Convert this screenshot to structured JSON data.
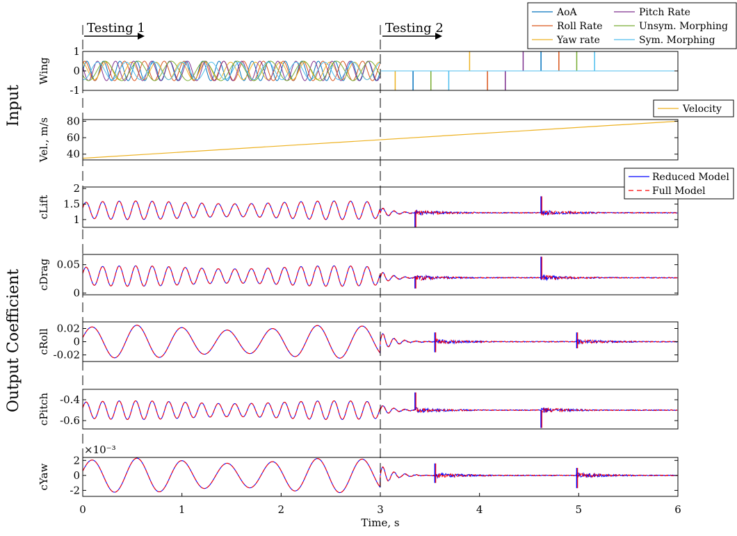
{
  "chart_data": {
    "type": "line",
    "x_axis": {
      "label": "Time, s",
      "range": [
        0,
        6
      ],
      "ticks": [
        "0",
        "1",
        "2",
        "3",
        "4",
        "5",
        "6"
      ]
    },
    "group_labels": [
      "Input",
      "Output Coefficient"
    ],
    "annotations": [
      "Testing 1",
      "Testing 2"
    ],
    "testing_boundary_time": 3,
    "panels": [
      {
        "ylabel": "Wing",
        "ylim": [
          -1,
          1
        ],
        "yticks": [
          "-1",
          "0",
          "1"
        ],
        "legend": [
          "AoA",
          "Roll Rate",
          "Yaw rate",
          "Pitch Rate",
          "Unsym. Morphing",
          "Sym. Morphing"
        ],
        "legend_columns": 2,
        "legend_placement": "top-right",
        "series": [
          {
            "name": "AoA",
            "color": "#0072BD",
            "testing1": {
              "amplitude": 0.5,
              "frequency_hz": 6.0
            },
            "pulses": [
              {
                "t": 3.33,
                "value": -1
              },
              {
                "t": 4.62,
                "value": 1
              }
            ]
          },
          {
            "name": "Roll Rate",
            "color": "#D95319",
            "testing1": {
              "amplitude": 0.5,
              "frequency_hz": 5.0
            },
            "pulses": [
              {
                "t": 4.08,
                "value": -1
              },
              {
                "t": 4.8,
                "value": 1
              }
            ]
          },
          {
            "name": "Yaw rate",
            "color": "#EDB120",
            "testing1": {
              "amplitude": 0.45,
              "frequency_hz": 4.0
            },
            "pulses": [
              {
                "t": 3.15,
                "value": -1
              },
              {
                "t": 3.9,
                "value": 1
              }
            ]
          },
          {
            "name": "Pitch Rate",
            "color": "#7E2F8E",
            "testing1": {
              "amplitude": 0.5,
              "frequency_hz": 5.5
            },
            "pulses": [
              {
                "t": 4.26,
                "value": -1
              },
              {
                "t": 4.44,
                "value": 1
              }
            ]
          },
          {
            "name": "Unsym. Morphing",
            "color": "#77AC30",
            "testing1": {
              "amplitude": 0.5,
              "frequency_hz": 3.0
            },
            "pulses": [
              {
                "t": 3.51,
                "value": -1
              },
              {
                "t": 4.98,
                "value": 1
              }
            ]
          },
          {
            "name": "Sym. Morphing",
            "color": "#4DBEEE",
            "testing1": {
              "amplitude": 0.45,
              "frequency_hz": 3.5
            },
            "pulses": [
              {
                "t": 3.69,
                "value": -1
              },
              {
                "t": 5.16,
                "value": 1
              }
            ]
          }
        ]
      },
      {
        "ylabel": "Vel., m/s",
        "ylim": [
          33,
          82
        ],
        "yticks": [
          "40",
          "60",
          "80"
        ],
        "legend": [
          "Velocity"
        ],
        "legend_placement": "top-right",
        "series": [
          {
            "name": "Velocity",
            "color": "#EDB120",
            "x": [
              0,
              6
            ],
            "values": [
              35,
              80
            ]
          }
        ]
      },
      {
        "ylabel": "cLift",
        "ylim": [
          0.75,
          2.05
        ],
        "yticks": [
          "1",
          "1.5",
          "2"
        ],
        "legend": [
          "Reduced Model",
          "Full Model"
        ],
        "legend_placement": "top-right",
        "testing1": {
          "mean": 1.3,
          "amplitude": 0.3,
          "frequency_hz": 6.0
        },
        "testing2_baseline": 1.22,
        "spikes": [
          {
            "t": 3.35,
            "min": 0.75,
            "max": 1.25
          },
          {
            "t": 4.62,
            "min": 1.2,
            "max": 1.75
          }
        ]
      },
      {
        "ylabel": "cDrag",
        "ylim": [
          -0.003,
          0.068
        ],
        "yticks": [
          "0",
          "0.05"
        ],
        "testing1": {
          "mean": 0.03,
          "amplitude": 0.018,
          "frequency_hz": 6.0
        },
        "testing2_baseline": 0.027,
        "spikes": [
          {
            "t": 3.35,
            "min": 0.008,
            "max": 0.03
          },
          {
            "t": 4.62,
            "min": 0.024,
            "max": 0.064
          }
        ]
      },
      {
        "ylabel": "cRoll",
        "ylim": [
          -0.03,
          0.03
        ],
        "yticks": [
          "-0.02",
          "0",
          "0.02"
        ],
        "testing1": {
          "mean": 0.0,
          "amplitude": 0.025,
          "frequency_hz": 2.2
        },
        "testing2_baseline": 0.0,
        "spikes": [
          {
            "t": 3.55,
            "min": -0.016,
            "max": 0.014
          },
          {
            "t": 4.98,
            "min": -0.01,
            "max": 0.014
          }
        ]
      },
      {
        "ylabel": "cPitch",
        "ylim": [
          -0.68,
          -0.3
        ],
        "yticks": [
          "-0.6",
          "-0.4"
        ],
        "testing1": {
          "mean": -0.5,
          "amplitude": 0.09,
          "frequency_hz": 6.0
        },
        "testing2_baseline": -0.5,
        "spikes": [
          {
            "t": 3.35,
            "min": -0.5,
            "max": -0.33
          },
          {
            "t": 4.62,
            "min": -0.67,
            "max": -0.5
          }
        ]
      },
      {
        "ylabel": "cYaw",
        "ylim": [
          -2.8,
          2.4
        ],
        "yticks": [
          "-2",
          "0",
          "2"
        ],
        "exponent_label": "×10⁻³",
        "testing1": {
          "mean": 0.0,
          "amplitude": 2.3,
          "frequency_hz": 2.2
        },
        "testing2_baseline": 0.0,
        "spikes": [
          {
            "t": 3.55,
            "min": -1.0,
            "max": 1.6
          },
          {
            "t": 4.98,
            "min": -1.7,
            "max": 1.0
          }
        ]
      }
    ],
    "model_series": [
      {
        "name": "Reduced Model",
        "color": "#0000FF",
        "style": "solid"
      },
      {
        "name": "Full Model",
        "color": "#FF0000",
        "style": "dashed"
      }
    ]
  }
}
